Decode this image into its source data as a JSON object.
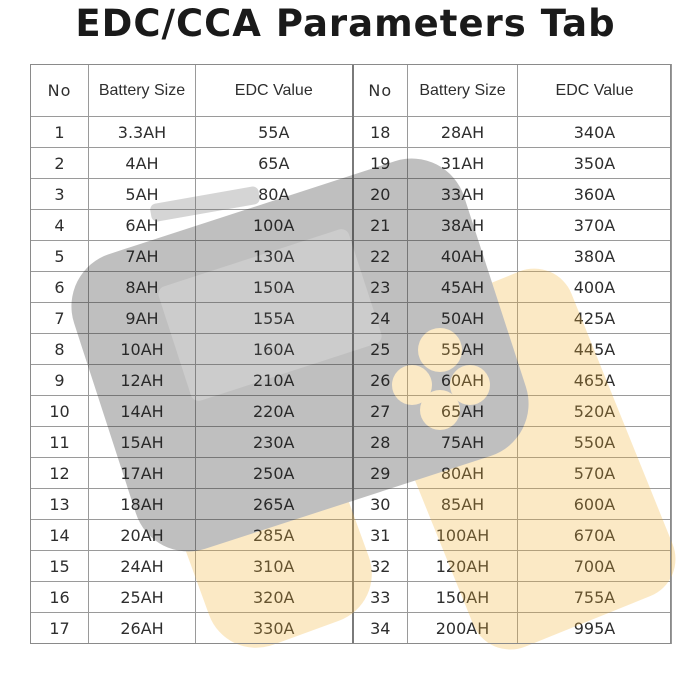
{
  "title": "EDC/CCA Parameters Tab",
  "headers": {
    "no": "No",
    "battery_size": "Battery Size",
    "edc_value": "EDC Value"
  },
  "left_rows": [
    {
      "no": "1",
      "size": "3.3AH",
      "edc": "55A"
    },
    {
      "no": "2",
      "size": "4AH",
      "edc": "65A"
    },
    {
      "no": "3",
      "size": "5AH",
      "edc": "80A"
    },
    {
      "no": "4",
      "size": "6AH",
      "edc": "100A"
    },
    {
      "no": "5",
      "size": "7AH",
      "edc": "130A"
    },
    {
      "no": "6",
      "size": "8AH",
      "edc": "150A"
    },
    {
      "no": "7",
      "size": "9AH",
      "edc": "155A"
    },
    {
      "no": "8",
      "size": "10AH",
      "edc": "160A"
    },
    {
      "no": "9",
      "size": "12AH",
      "edc": "210A"
    },
    {
      "no": "10",
      "size": "14AH",
      "edc": "220A"
    },
    {
      "no": "11",
      "size": "15AH",
      "edc": "230A"
    },
    {
      "no": "12",
      "size": "17AH",
      "edc": "250A"
    },
    {
      "no": "13",
      "size": "18AH",
      "edc": "265A"
    },
    {
      "no": "14",
      "size": "20AH",
      "edc": "285A"
    },
    {
      "no": "15",
      "size": "24AH",
      "edc": "310A"
    },
    {
      "no": "16",
      "size": "25AH",
      "edc": "320A"
    },
    {
      "no": "17",
      "size": "26AH",
      "edc": "330A"
    }
  ],
  "right_rows": [
    {
      "no": "18",
      "size": "28AH",
      "edc": "340A"
    },
    {
      "no": "19",
      "size": "31AH",
      "edc": "350A"
    },
    {
      "no": "20",
      "size": "33AH",
      "edc": "360A"
    },
    {
      "no": "21",
      "size": "38AH",
      "edc": "370A"
    },
    {
      "no": "22",
      "size": "40AH",
      "edc": "380A"
    },
    {
      "no": "23",
      "size": "45AH",
      "edc": "400A"
    },
    {
      "no": "24",
      "size": "50AH",
      "edc": "425A"
    },
    {
      "no": "25",
      "size": "55AH",
      "edc": "445A"
    },
    {
      "no": "26",
      "size": "60AH",
      "edc": "465A"
    },
    {
      "no": "27",
      "size": "65AH",
      "edc": "520A"
    },
    {
      "no": "28",
      "size": "75AH",
      "edc": "550A"
    },
    {
      "no": "29",
      "size": "80AH",
      "edc": "570A"
    },
    {
      "no": "30",
      "size": "85AH",
      "edc": "600A"
    },
    {
      "no": "31",
      "size": "100AH",
      "edc": "670A"
    },
    {
      "no": "32",
      "size": "120AH",
      "edc": "700A"
    },
    {
      "no": "33",
      "size": "150AH",
      "edc": "755A"
    },
    {
      "no": "34",
      "size": "200AH",
      "edc": "995A"
    }
  ],
  "colors": {
    "watermark_body": "#1e1e1e",
    "watermark_accent": "#f2b233"
  }
}
